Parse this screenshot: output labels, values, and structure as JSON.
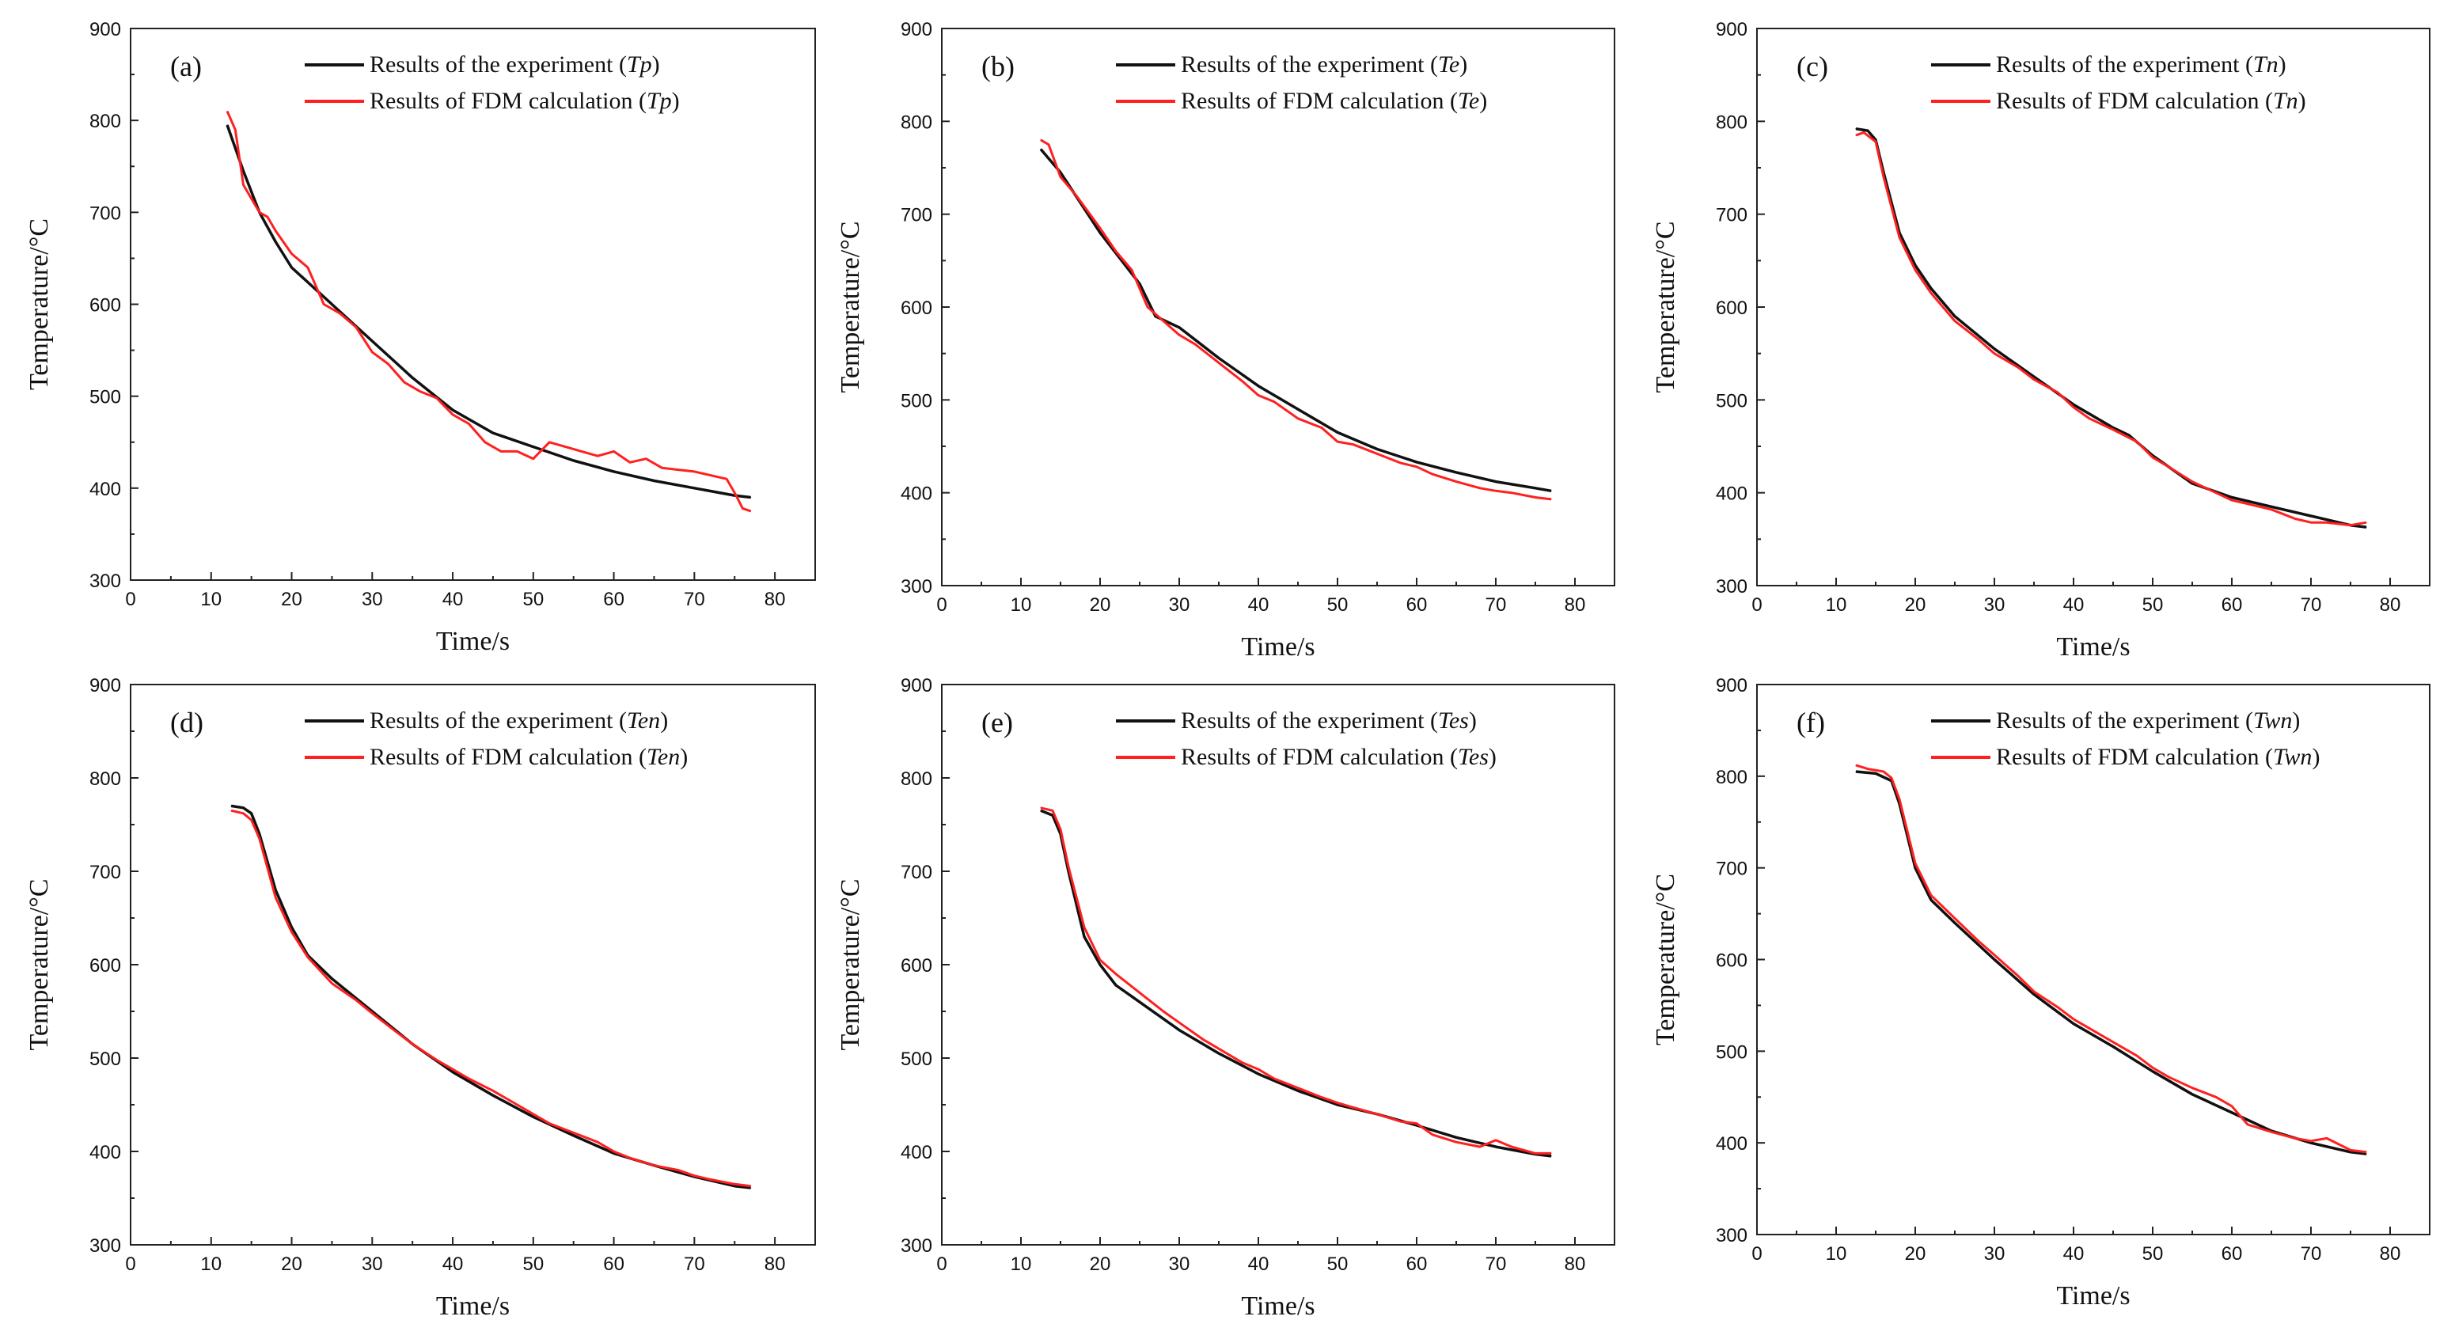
{
  "figure": {
    "colors": {
      "experiment": "#111111",
      "fdm": "#ff2020",
      "axis": "#222222"
    }
  },
  "chart_data": [
    {
      "type": "line",
      "panel_label": "(a)",
      "xlabel": "Time/s",
      "ylabel": "Temperature/°C",
      "xlim": [
        0,
        85
      ],
      "ylim": [
        300,
        900
      ],
      "xticks": [
        "0",
        "10",
        "20",
        "30",
        "40",
        "50",
        "60",
        "70",
        "80"
      ],
      "yticks": [
        "300",
        "400",
        "500",
        "600",
        "700",
        "800",
        "900"
      ],
      "legend_position": "top-right",
      "series": [
        {
          "name": "Results of the experiment",
          "var": "Tp",
          "color": "#111111",
          "x": [
            12,
            14,
            16,
            18,
            20,
            25,
            30,
            35,
            40,
            45,
            50,
            55,
            60,
            65,
            70,
            75,
            77
          ],
          "y": [
            795,
            745,
            700,
            668,
            640,
            600,
            560,
            520,
            485,
            460,
            445,
            430,
            418,
            408,
            400,
            392,
            390
          ]
        },
        {
          "name": "Results of FDM calculation",
          "var": "Tp",
          "color": "#ff2020",
          "x": [
            12,
            13,
            14,
            15,
            16,
            17,
            18,
            20,
            22,
            24,
            26,
            28,
            30,
            32,
            34,
            36,
            38,
            40,
            42,
            44,
            46,
            48,
            50,
            52,
            54,
            56,
            58,
            60,
            62,
            64,
            66,
            68,
            70,
            72,
            74,
            75,
            76,
            77
          ],
          "y": [
            810,
            790,
            730,
            715,
            700,
            695,
            680,
            655,
            640,
            600,
            590,
            575,
            548,
            535,
            515,
            505,
            498,
            480,
            470,
            450,
            440,
            440,
            432,
            450,
            445,
            440,
            435,
            440,
            428,
            432,
            422,
            420,
            418,
            414,
            410,
            395,
            378,
            375
          ]
        }
      ]
    },
    {
      "type": "line",
      "panel_label": "(b)",
      "xlabel": "Time/s",
      "ylabel": "Temperature/°C",
      "xlim": [
        0,
        85
      ],
      "ylim": [
        300,
        900
      ],
      "xticks": [
        "0",
        "10",
        "20",
        "30",
        "40",
        "50",
        "60",
        "70",
        "80"
      ],
      "yticks": [
        "300",
        "400",
        "500",
        "600",
        "700",
        "800",
        "900"
      ],
      "legend_position": "top-right",
      "series": [
        {
          "name": "Results of the experiment",
          "var": "Te",
          "color": "#111111",
          "x": [
            12.5,
            15,
            20,
            25,
            27,
            30,
            35,
            40,
            45,
            50,
            55,
            60,
            65,
            70,
            75,
            77
          ],
          "y": [
            770,
            745,
            680,
            625,
            590,
            578,
            545,
            515,
            490,
            465,
            447,
            433,
            422,
            412,
            405,
            402
          ]
        },
        {
          "name": "Results of FDM calculation",
          "var": "Te",
          "color": "#ff2020",
          "x": [
            12.5,
            13.5,
            15,
            17,
            20,
            22,
            24,
            26,
            28,
            30,
            32,
            35,
            38,
            40,
            42,
            45,
            48,
            50,
            52,
            55,
            58,
            60,
            62,
            65,
            68,
            70,
            72,
            75,
            77
          ],
          "y": [
            780,
            775,
            740,
            720,
            685,
            660,
            640,
            600,
            585,
            570,
            560,
            540,
            520,
            505,
            498,
            480,
            470,
            455,
            452,
            442,
            432,
            428,
            420,
            412,
            405,
            402,
            400,
            395,
            393
          ]
        }
      ]
    },
    {
      "type": "line",
      "panel_label": "(c)",
      "xlabel": "Time/s",
      "ylabel": "Temperature/°C",
      "xlim": [
        0,
        85
      ],
      "ylim": [
        300,
        900
      ],
      "xticks": [
        "0",
        "10",
        "20",
        "30",
        "40",
        "50",
        "60",
        "70",
        "80"
      ],
      "yticks": [
        "300",
        "400",
        "500",
        "600",
        "700",
        "800",
        "900"
      ],
      "legend_position": "top-right",
      "series": [
        {
          "name": "Results of the experiment",
          "var": "Tn",
          "color": "#111111",
          "x": [
            12.5,
            14,
            15,
            16,
            18,
            20,
            22,
            25,
            30,
            35,
            40,
            45,
            47,
            50,
            55,
            60,
            65,
            70,
            75,
            77
          ],
          "y": [
            792,
            790,
            780,
            745,
            680,
            645,
            620,
            590,
            555,
            525,
            495,
            470,
            462,
            440,
            410,
            395,
            385,
            375,
            365,
            363
          ]
        },
        {
          "name": "Results of FDM calculation",
          "var": "Tn",
          "color": "#ff2020",
          "x": [
            12.5,
            13.5,
            15,
            16,
            18,
            20,
            22,
            25,
            28,
            30,
            33,
            35,
            38,
            40,
            42,
            45,
            48,
            50,
            52,
            55,
            58,
            60,
            62,
            65,
            68,
            70,
            72,
            75,
            77
          ],
          "y": [
            785,
            788,
            778,
            740,
            675,
            640,
            615,
            585,
            565,
            550,
            535,
            522,
            508,
            492,
            480,
            468,
            455,
            438,
            428,
            412,
            400,
            392,
            388,
            382,
            372,
            368,
            368,
            365,
            368
          ]
        }
      ]
    },
    {
      "type": "line",
      "panel_label": "(d)",
      "xlabel": "Time/s",
      "ylabel": "Temperature/°C",
      "xlim": [
        0,
        85
      ],
      "ylim": [
        300,
        900
      ],
      "xticks": [
        "0",
        "10",
        "20",
        "30",
        "40",
        "50",
        "60",
        "70",
        "80"
      ],
      "yticks": [
        "300",
        "400",
        "500",
        "600",
        "700",
        "800",
        "900"
      ],
      "legend_position": "top-right",
      "series": [
        {
          "name": "Results of the experiment",
          "var": "Ten",
          "color": "#111111",
          "x": [
            12.5,
            14,
            15,
            16,
            18,
            20,
            22,
            25,
            30,
            35,
            40,
            45,
            50,
            55,
            60,
            65,
            70,
            75,
            77
          ],
          "y": [
            770,
            768,
            762,
            740,
            680,
            640,
            610,
            585,
            550,
            515,
            485,
            460,
            437,
            417,
            398,
            385,
            373,
            363,
            361
          ]
        },
        {
          "name": "Results of FDM calculation",
          "var": "Ten",
          "color": "#ff2020",
          "x": [
            12.5,
            14,
            15,
            16,
            18,
            20,
            22,
            25,
            28,
            30,
            33,
            35,
            38,
            40,
            42,
            45,
            48,
            50,
            52,
            55,
            58,
            60,
            62,
            65,
            68,
            70,
            72,
            75,
            77
          ],
          "y": [
            765,
            762,
            755,
            735,
            672,
            635,
            608,
            580,
            562,
            548,
            528,
            515,
            498,
            488,
            478,
            465,
            450,
            440,
            430,
            420,
            410,
            400,
            393,
            385,
            380,
            374,
            370,
            365,
            363
          ]
        }
      ]
    },
    {
      "type": "line",
      "panel_label": "(e)",
      "xlabel": "Time/s",
      "ylabel": "Temperature/°C",
      "xlim": [
        0,
        85
      ],
      "ylim": [
        300,
        900
      ],
      "xticks": [
        "0",
        "10",
        "20",
        "30",
        "40",
        "50",
        "60",
        "70",
        "80"
      ],
      "yticks": [
        "300",
        "400",
        "500",
        "600",
        "700",
        "800",
        "900"
      ],
      "legend_position": "top-right",
      "series": [
        {
          "name": "Results of the experiment",
          "var": "Tes",
          "color": "#111111",
          "x": [
            12.5,
            14,
            15,
            16,
            18,
            20,
            22,
            25,
            30,
            35,
            40,
            45,
            50,
            55,
            60,
            65,
            70,
            75,
            77
          ],
          "y": [
            765,
            760,
            740,
            700,
            630,
            600,
            578,
            560,
            530,
            505,
            483,
            465,
            450,
            440,
            428,
            415,
            405,
            397,
            395
          ]
        },
        {
          "name": "Results of FDM calculation",
          "var": "Tes",
          "color": "#ff2020",
          "x": [
            12.5,
            14,
            15,
            16,
            18,
            20,
            22,
            25,
            28,
            30,
            33,
            35,
            38,
            40,
            42,
            45,
            48,
            50,
            52,
            55,
            58,
            60,
            62,
            65,
            68,
            70,
            72,
            75,
            77
          ],
          "y": [
            768,
            765,
            745,
            705,
            640,
            605,
            590,
            570,
            550,
            538,
            520,
            510,
            495,
            488,
            478,
            468,
            458,
            452,
            447,
            440,
            432,
            430,
            418,
            410,
            405,
            412,
            405,
            398,
            398
          ]
        }
      ]
    },
    {
      "type": "line",
      "panel_label": "(f)",
      "xlabel": "Time/s",
      "ylabel": "Temperature/°C",
      "xlim": [
        0,
        85
      ],
      "ylim": [
        300,
        900
      ],
      "xticks": [
        "0",
        "10",
        "20",
        "30",
        "40",
        "50",
        "60",
        "70",
        "80"
      ],
      "yticks": [
        "300",
        "400",
        "500",
        "600",
        "700",
        "800",
        "900"
      ],
      "legend_position": "top-right",
      "series": [
        {
          "name": "Results of the experiment",
          "var": "Twn",
          "color": "#111111",
          "x": [
            12.5,
            15,
            17,
            18,
            20,
            22,
            25,
            30,
            35,
            40,
            45,
            50,
            55,
            60,
            65,
            70,
            75,
            77
          ],
          "y": [
            805,
            803,
            795,
            770,
            700,
            665,
            640,
            600,
            562,
            530,
            505,
            478,
            453,
            433,
            413,
            400,
            390,
            388
          ]
        },
        {
          "name": "Results of FDM calculation",
          "var": "Twn",
          "color": "#ff2020",
          "x": [
            12.5,
            14,
            16,
            17,
            18,
            20,
            22,
            25,
            28,
            30,
            33,
            35,
            38,
            40,
            42,
            45,
            48,
            50,
            52,
            55,
            58,
            60,
            62,
            65,
            68,
            70,
            72,
            75,
            77
          ],
          "y": [
            812,
            808,
            805,
            798,
            775,
            705,
            670,
            645,
            620,
            605,
            582,
            565,
            548,
            535,
            525,
            510,
            495,
            482,
            472,
            460,
            450,
            440,
            420,
            412,
            405,
            402,
            405,
            392,
            390
          ]
        }
      ]
    }
  ]
}
